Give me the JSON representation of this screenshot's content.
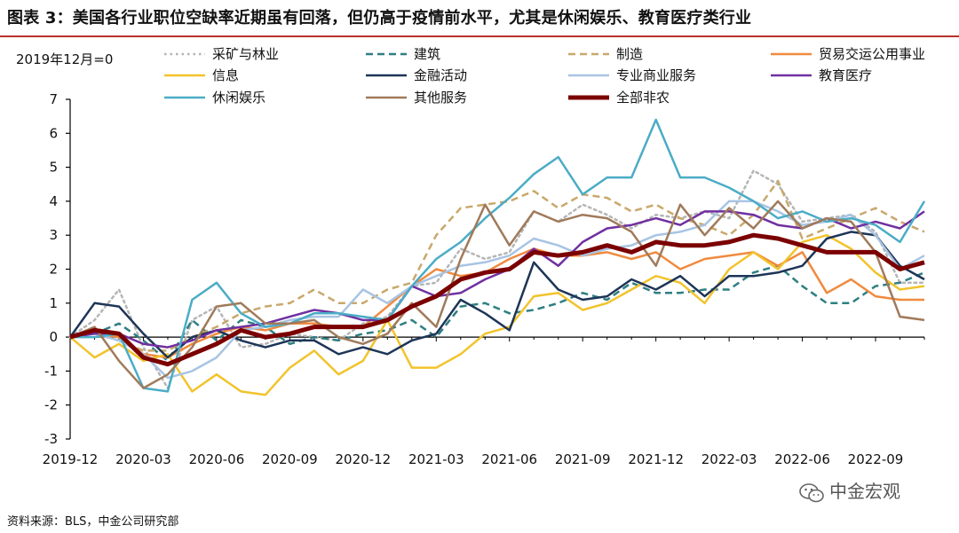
{
  "title": "图表 3：美国各行业职位空缺率近期虽有回落，但仍高于疫情前水平，尤其是休闲娱乐、教育医疗类行业",
  "y_note": "2019年12月=0",
  "source": "资料来源：BLS，中金公司研究部",
  "watermark": "中金宏观",
  "chart_data": {
    "type": "line",
    "x_tick_labels": [
      "2019-12",
      "2020-03",
      "2020-06",
      "2020-09",
      "2020-12",
      "2021-03",
      "2021-06",
      "2021-09",
      "2021-12",
      "2022-03",
      "2022-06",
      "2022-09"
    ],
    "ylim": [
      -3,
      7
    ],
    "y_ticks": [
      -3,
      -2,
      -1,
      0,
      1,
      2,
      3,
      4,
      5,
      6,
      7
    ],
    "legend_placement": "top",
    "series": [
      {
        "name": "采矿与林业",
        "color": "#b5b5b5",
        "dash": "dot",
        "width": 2.5,
        "values": [
          0,
          0.5,
          1.4,
          -0.3,
          -1.5,
          0.5,
          0.9,
          -0.3,
          -0.2,
          0.1,
          0,
          -0.1,
          0.4,
          0.6,
          1.5,
          1.6,
          2.6,
          2.3,
          2.5,
          3.7,
          3.4,
          3.9,
          3.6,
          3.2,
          3.6,
          3.5,
          3.7,
          3.5,
          4.9,
          4.5,
          3.4,
          3.5,
          3.6,
          3.1,
          1.6,
          1.6
        ]
      },
      {
        "name": "建筑",
        "color": "#2e7f82",
        "dash": "dash",
        "width": 2.5,
        "values": [
          0,
          0.1,
          0.4,
          -0.1,
          -0.7,
          0.5,
          -0.1,
          0.5,
          0.3,
          -0.2,
          0,
          -0.1,
          0.1,
          0.2,
          0.5,
          0,
          0.9,
          1,
          0.7,
          0.8,
          1.0,
          1.3,
          1.1,
          1.6,
          1.3,
          1.3,
          1.4,
          1.4,
          1.9,
          2.1,
          1.5,
          1.0,
          1.0,
          1.5,
          1.6,
          1.9
        ]
      },
      {
        "name": "制造",
        "color": "#c8a86b",
        "dash": "dash",
        "width": 2.5,
        "values": [
          0,
          0.1,
          -0.1,
          -0.4,
          -0.4,
          0,
          0.3,
          0.7,
          0.9,
          1.0,
          1.4,
          1.0,
          1.0,
          1.4,
          1.6,
          3.0,
          3.8,
          3.9,
          4.0,
          4.3,
          3.8,
          4.2,
          4.1,
          3.7,
          3.9,
          3.5,
          3.3,
          3.0,
          3.6,
          4.6,
          2.9,
          3.2,
          3.5,
          3.8,
          3.4,
          3.1
        ]
      },
      {
        "name": "贸易交运公用事业",
        "color": "#f08a3e",
        "dash": "solid",
        "width": 2.5,
        "values": [
          0,
          0.1,
          0,
          -0.5,
          -0.6,
          -0.2,
          0.1,
          0.3,
          0.2,
          0.4,
          0.4,
          0.3,
          0.3,
          0.9,
          1.5,
          2.0,
          1.8,
          1.9,
          2.3,
          2.6,
          2.4,
          2.4,
          2.5,
          2.3,
          2.5,
          2.0,
          2.3,
          2.4,
          2.5,
          2.1,
          2.5,
          1.3,
          1.7,
          1.2,
          1.1,
          1.1
        ]
      },
      {
        "name": "信息",
        "color": "#f2c32c",
        "dash": "solid",
        "width": 2.5,
        "values": [
          0,
          -0.6,
          -0.2,
          -0.7,
          -0.5,
          -1.6,
          -1.1,
          -1.6,
          -1.7,
          -0.9,
          -0.4,
          -1.1,
          -0.7,
          0.5,
          -0.9,
          -0.9,
          -0.5,
          0.1,
          0.3,
          1.2,
          1.3,
          0.8,
          1.0,
          1.4,
          1.8,
          1.6,
          1.0,
          2.0,
          2.5,
          2.0,
          2.8,
          3.0,
          2.6,
          1.9,
          1.4,
          1.5
        ]
      },
      {
        "name": "金融活动",
        "color": "#1d3557",
        "dash": "solid",
        "width": 2.5,
        "values": [
          0,
          1.0,
          0.9,
          0.1,
          -0.6,
          0,
          0.2,
          -0.1,
          -0.3,
          -0.1,
          -0.1,
          -0.5,
          -0.3,
          -0.5,
          -0.1,
          0.1,
          1.1,
          0.7,
          0.2,
          2.2,
          1.4,
          1.1,
          1.2,
          1.7,
          1.4,
          1.8,
          1.2,
          1.8,
          1.8,
          1.9,
          2.1,
          2.9,
          3.1,
          3.0,
          2.1,
          1.7
        ]
      },
      {
        "name": "专业商业服务",
        "color": "#a8c4e3",
        "dash": "solid",
        "width": 2.5,
        "values": [
          0,
          0.1,
          -0.1,
          -0.5,
          -1.2,
          -1.0,
          -0.6,
          0.2,
          0.3,
          0.5,
          0.6,
          0.6,
          1.4,
          1.0,
          1.5,
          1.8,
          2.1,
          2.2,
          2.4,
          2.9,
          2.7,
          2.4,
          2.6,
          2.7,
          3.0,
          3.1,
          3.3,
          4.0,
          4.0,
          3.7,
          3.3,
          3.4,
          3.6,
          3.0,
          2.0,
          2.4
        ]
      },
      {
        "name": "教育医疗",
        "color": "#7030a0",
        "dash": "solid",
        "width": 2.5,
        "values": [
          0,
          0.1,
          0.1,
          -0.2,
          -0.3,
          -0.1,
          0.2,
          0.3,
          0.4,
          0.6,
          0.8,
          0.7,
          0.5,
          0.5,
          1.5,
          1.2,
          1.3,
          1.7,
          2.0,
          2.6,
          2.1,
          2.8,
          3.2,
          3.3,
          3.5,
          3.3,
          3.7,
          3.7,
          3.6,
          3.3,
          3.2,
          3.5,
          3.2,
          3.4,
          3.2,
          3.7
        ]
      },
      {
        "name": "休闲娱乐",
        "color": "#4bacc6",
        "dash": "solid",
        "width": 2.5,
        "values": [
          0,
          0,
          0.1,
          -1.5,
          -1.6,
          1.1,
          1.6,
          0.7,
          0.3,
          0.4,
          0.7,
          0.7,
          0.6,
          0.5,
          1.5,
          2.3,
          2.8,
          3.5,
          4.1,
          4.8,
          5.3,
          4.2,
          4.7,
          4.7,
          6.4,
          4.7,
          4.7,
          4.4,
          4.0,
          3.5,
          3.7,
          3.4,
          3.5,
          3.3,
          2.8,
          4.0
        ]
      },
      {
        "name": "其他服务",
        "color": "#a07a5a",
        "dash": "solid",
        "width": 2.5,
        "values": [
          0,
          0.3,
          -0.7,
          -1.5,
          -1.1,
          -0.3,
          0.9,
          1.0,
          0.4,
          0.4,
          0.5,
          0.0,
          -0.2,
          0.1,
          1.0,
          0.3,
          2.3,
          3.9,
          2.7,
          3.7,
          3.4,
          3.6,
          3.5,
          3.1,
          2.1,
          3.9,
          3.0,
          3.8,
          3.2,
          4.0,
          3.2,
          3.5,
          3.4,
          2.5,
          0.6,
          0.5
        ]
      },
      {
        "name": "全部非农",
        "color": "#7b0000",
        "dash": "solid",
        "width": 5,
        "values": [
          0,
          0.2,
          0.1,
          -0.6,
          -0.8,
          -0.5,
          -0.2,
          0.2,
          0,
          0.1,
          0.3,
          0.3,
          0.3,
          0.5,
          0.9,
          1.2,
          1.7,
          1.9,
          2.0,
          2.5,
          2.4,
          2.5,
          2.7,
          2.5,
          2.8,
          2.7,
          2.7,
          2.8,
          3.0,
          2.9,
          2.7,
          2.5,
          2.5,
          2.5,
          2.0,
          2.2
        ]
      }
    ]
  }
}
